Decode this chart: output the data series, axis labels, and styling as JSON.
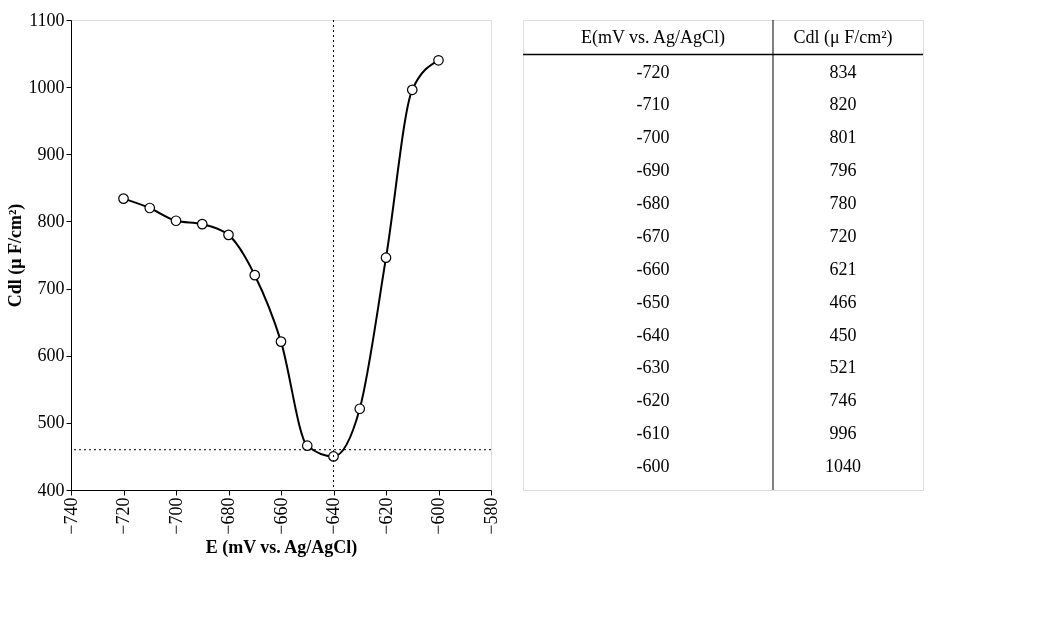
{
  "chart_data": [
    {
      "type": "line",
      "xlabel": "E (mV vs. Ag/AgCl)",
      "ylabel": "Cdl (μ F/cm²)",
      "x": [
        -720,
        -710,
        -700,
        -690,
        -680,
        -670,
        -660,
        -650,
        -640,
        -630,
        -620,
        -610,
        -600
      ],
      "series": [
        {
          "color": "#000000",
          "values": [
            834,
            820,
            801,
            796,
            780,
            720,
            621,
            466,
            450,
            521,
            746,
            996,
            1040
          ]
        }
      ],
      "marker": "circle",
      "line_style": "solid",
      "grid": false,
      "xlim": [
        -740,
        -580
      ],
      "xticks": [
        -740,
        -720,
        -700,
        -680,
        -660,
        -640,
        -620,
        -600,
        -580
      ],
      "ylim": [
        400,
        1100
      ],
      "yticks": [
        400,
        500,
        600,
        700,
        800,
        900,
        1000,
        1100
      ],
      "ref_lines": [
        {
          "axis": "y",
          "value": 460,
          "line_style": "dotted",
          "color": "#000000"
        },
        {
          "axis": "x",
          "value": -640,
          "line_style": "dotted",
          "color": "#000000"
        }
      ]
    },
    {
      "type": "heatmap",
      "ylabel": "E(mV  vs.  Ag/AgCl)",
      "categories": [
        "Cdl (μ F/cm²)"
      ],
      "y_categories": [
        "-720",
        "-710",
        "-700",
        "-690",
        "-680",
        "-670",
        "-660",
        "-650",
        "-640",
        "-630",
        "-620",
        "-610",
        "-600"
      ],
      "cells": [
        [
          834
        ],
        [
          820
        ],
        [
          801
        ],
        [
          796
        ],
        [
          780
        ],
        [
          720
        ],
        [
          621
        ],
        [
          466
        ],
        [
          450
        ],
        [
          521
        ],
        [
          746
        ],
        [
          996
        ],
        [
          1040
        ]
      ],
      "data_labels": true
    }
  ]
}
